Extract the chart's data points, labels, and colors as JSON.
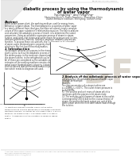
{
  "title_line1": "diabatic process by using the thermodynamic",
  "title_line2": "of water vapor",
  "author_line": "YurongDing¹  and FengPing²",
  "affil1": "Shenyang Electric Power Academy, Shenyang, China",
  "affil2": "Dalian Software Institute, Shenyang, Dalian, China",
  "abstract_label": "Abstract",
  "section1": "1 Introduction",
  "fig1_label": "Fig.1 T-s diagram and isentropic adiabatic Process",
  "fig2_label": "Fig.2 T-s diagram of water vapor adiabatic process",
  "section2": "2 Analysis of the adiabatic process of water vapor",
  "background_color": "#ffffff",
  "text_color": "#333333",
  "pdf_color": "#ddd8d0",
  "gray_text": "#888888",
  "dark_text": "#111111"
}
